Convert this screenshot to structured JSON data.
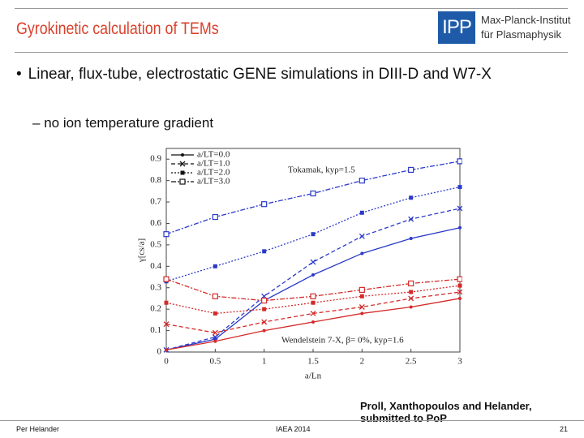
{
  "header": {
    "title": "Gyrokinetic calculation of TEMs",
    "logo": "IPP",
    "institute": [
      "Max-Planck-Institut",
      "für Plasmaphysik"
    ]
  },
  "bullets": [
    {
      "text": "Linear, flux-tube, electrostatic GENE simulations in DIII-D and W7-X",
      "sub": [
        "no ion temperature gradient"
      ]
    }
  ],
  "chart_data": {
    "type": "line",
    "x_label": "a/Ln",
    "y_label": "γ[cs/a]",
    "x": [
      0,
      0.5,
      1,
      1.5,
      2,
      2.5,
      3
    ],
    "xlim": [
      0,
      3
    ],
    "ylim": [
      0,
      0.95
    ],
    "xticks": [
      0,
      0.5,
      1,
      1.5,
      2,
      2.5,
      3
    ],
    "yticks": [
      0,
      0.1,
      0.2,
      0.3,
      0.4,
      0.5,
      0.6,
      0.7,
      0.8,
      0.9
    ],
    "grid": false,
    "legend": [
      {
        "name": "a/LT=0.0",
        "marker": "dot",
        "dash": "solid"
      },
      {
        "name": "a/LT=1.0",
        "marker": "x",
        "dash": "dashed"
      },
      {
        "name": "a/LT=2.0",
        "marker": "square",
        "dash": "dotted"
      },
      {
        "name": "a/LT=3.0",
        "marker": "open-square",
        "dash": "dashdot"
      }
    ],
    "annotations": [
      {
        "text": "Tokamak, kyρ=1.5",
        "color": "#3a4ad0"
      },
      {
        "text": "Wendelstein 7-X, β= 0%, kyρ=1.6",
        "color": "#d42a2a"
      }
    ],
    "series": [
      {
        "color": "#2a3ac8",
        "marker": "dot",
        "dash": "solid",
        "values": [
          0.01,
          0.06,
          0.24,
          0.36,
          0.46,
          0.53,
          0.58
        ]
      },
      {
        "color": "#2a3ac8",
        "marker": "x",
        "dash": "dashed",
        "values": [
          0.01,
          0.07,
          0.26,
          0.42,
          0.54,
          0.62,
          0.67
        ]
      },
      {
        "color": "#2a3ac8",
        "marker": "square",
        "dash": "dotted",
        "values": [
          0.33,
          0.4,
          0.47,
          0.55,
          0.65,
          0.72,
          0.77
        ]
      },
      {
        "color": "#2a3ac8",
        "marker": "open-square",
        "dash": "dashdot",
        "values": [
          0.55,
          0.63,
          0.69,
          0.74,
          0.8,
          0.85,
          0.89
        ]
      },
      {
        "color": "#d42a2a",
        "marker": "dot",
        "dash": "solid",
        "values": [
          0.01,
          0.05,
          0.1,
          0.14,
          0.18,
          0.21,
          0.25
        ]
      },
      {
        "color": "#d42a2a",
        "marker": "x",
        "dash": "dashed",
        "values": [
          0.13,
          0.09,
          0.14,
          0.18,
          0.21,
          0.25,
          0.28
        ]
      },
      {
        "color": "#d42a2a",
        "marker": "square",
        "dash": "dotted",
        "values": [
          0.23,
          0.18,
          0.2,
          0.23,
          0.26,
          0.28,
          0.31
        ]
      },
      {
        "color": "#d42a2a",
        "marker": "open-square",
        "dash": "dashdot",
        "values": [
          0.34,
          0.26,
          0.24,
          0.26,
          0.29,
          0.32,
          0.34
        ]
      }
    ]
  },
  "citation": "Proll, Xanthopoulos and Helander, submitted to PoP",
  "footer": {
    "author": "Per Helander",
    "event": "IAEA 2014",
    "page": "21"
  }
}
